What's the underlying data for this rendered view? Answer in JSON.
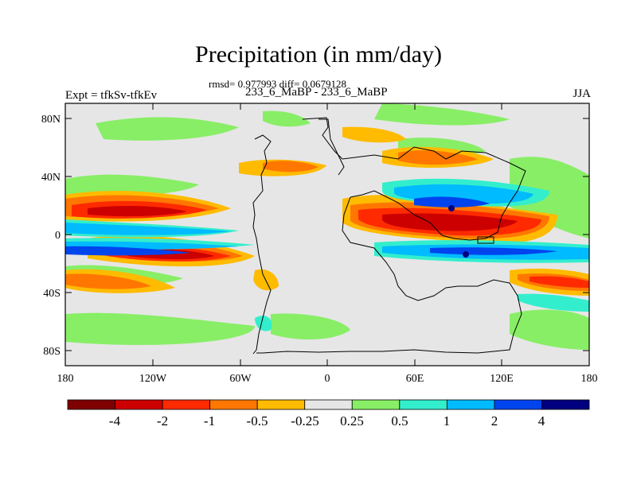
{
  "title": "Precipitation (in mm/day)",
  "stats_line": "rmsd= 0.977993 diff= 0.0679128",
  "subtitle": "233_6_MaBP - 233_6_MaBP",
  "left_label": "Expt = tfkSv-tfkEv",
  "right_label": "JJA",
  "lat_labels": [
    "80N",
    "40N",
    "0",
    "40S",
    "80S"
  ],
  "lon_labels": [
    "180",
    "120W",
    "60W",
    "0",
    "60E",
    "120E",
    "180"
  ],
  "colorbar": {
    "labels": [
      "-4",
      "-2",
      "-1",
      "-0.5",
      "-0.25",
      "0.25",
      "0.5",
      "1",
      "2",
      "4"
    ],
    "colors": [
      "#7f0000",
      "#cc0000",
      "#ff2a00",
      "#ff7700",
      "#ffbb00",
      "#e6e6e6",
      "#88ee66",
      "#33eecc",
      "#00bbff",
      "#0044ee",
      "#000080"
    ]
  },
  "colors": {
    "background_field": "#e6e6e6",
    "border": "#000000"
  }
}
